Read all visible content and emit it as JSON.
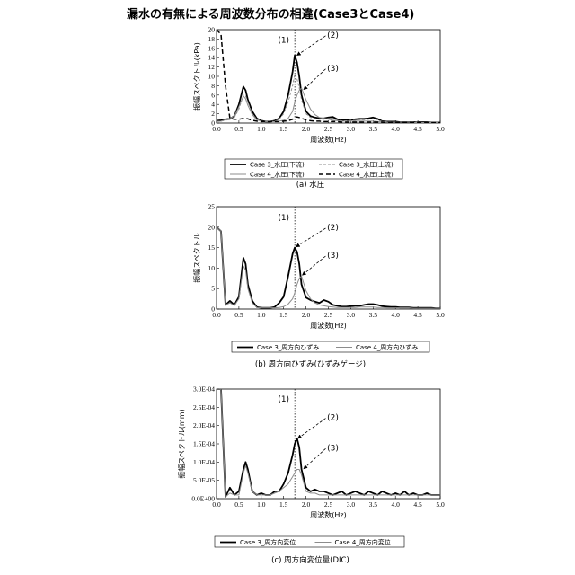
{
  "title": "漏水の有無による周波数分布の相違(Case3とCase4)",
  "colors": {
    "black": "#000000",
    "gray": "#8c8c8c",
    "frame": "#000000"
  },
  "chart_data": [
    {
      "type": "line",
      "ylabel": "振幅スペクトル(kPa)",
      "xlabel": "周波数(Hz)",
      "caption": "(a) 水圧",
      "xlim": [
        0,
        5
      ],
      "ylim": [
        0,
        20
      ],
      "xticks": [
        "0.0",
        "0.5",
        "1.0",
        "1.5",
        "2.0",
        "2.5",
        "3.0",
        "3.5",
        "4.0",
        "4.5",
        "5.0"
      ],
      "yticks": [
        "0",
        "2",
        "4",
        "6",
        "8",
        "10",
        "12",
        "14",
        "16",
        "18",
        "20"
      ],
      "vline": 1.75,
      "annotations": [
        {
          "label": "(1)",
          "x": 1.5,
          "y": 17.2
        },
        {
          "label": "(2)",
          "x": 2.6,
          "y": 18.3,
          "tx": 1.8,
          "ty": 14.5
        },
        {
          "label": "(3)",
          "x": 2.6,
          "y": 11.2,
          "tx": 1.95,
          "ty": 7.2
        }
      ],
      "x": [
        0.0,
        0.1,
        0.2,
        0.3,
        0.4,
        0.5,
        0.6,
        0.65,
        0.7,
        0.8,
        0.9,
        1.0,
        1.1,
        1.2,
        1.3,
        1.4,
        1.5,
        1.6,
        1.7,
        1.75,
        1.8,
        1.85,
        1.9,
        2.0,
        2.1,
        2.2,
        2.3,
        2.4,
        2.5,
        2.6,
        2.7,
        2.8,
        2.9,
        3.0,
        3.1,
        3.2,
        3.3,
        3.4,
        3.5,
        3.6,
        3.7,
        3.8,
        3.9,
        4.0,
        4.1,
        4.2,
        4.3,
        4.4,
        4.5,
        4.6,
        4.7,
        4.8,
        4.9,
        5.0
      ],
      "legend": [
        "Case 3_水圧(下流)",
        "Case 3_水圧(上流)",
        "Case 4_水圧(下流)",
        "Case 4_水圧(上流)"
      ],
      "series": [
        {
          "name": "Case 3_水圧(下流)",
          "color": "#000000",
          "width": 1.8,
          "dash": "",
          "values": [
            0.5,
            0.6,
            0.8,
            0.9,
            1.5,
            4.0,
            7.8,
            7.0,
            5.0,
            2.5,
            1.0,
            0.5,
            0.3,
            0.3,
            0.5,
            1.0,
            2.5,
            6.0,
            11.0,
            14.5,
            13.0,
            10.0,
            6.0,
            2.5,
            1.5,
            1.2,
            1.0,
            1.0,
            1.2,
            1.3,
            0.8,
            0.6,
            0.6,
            0.7,
            0.8,
            0.9,
            0.9,
            1.0,
            1.2,
            0.9,
            0.4,
            0.3,
            0.3,
            0.3,
            0.2,
            0.2,
            0.2,
            0.2,
            0.2,
            0.2,
            0.2,
            0.1,
            0.1,
            0.1
          ]
        },
        {
          "name": "Case 3_水圧(上流)",
          "color": "#8c8c8c",
          "width": 0.9,
          "dash": "3,2",
          "values": [
            0.4,
            0.4,
            0.6,
            0.8,
            1.2,
            3.0,
            6.0,
            5.8,
            4.5,
            2.0,
            0.8,
            0.4,
            0.3,
            0.3,
            0.4,
            0.8,
            2.0,
            4.5,
            8.0,
            10.5,
            9.5,
            7.5,
            5.0,
            2.0,
            1.2,
            0.9,
            0.8,
            0.8,
            1.0,
            1.0,
            0.6,
            0.5,
            0.5,
            0.6,
            0.6,
            0.7,
            0.7,
            0.8,
            0.9,
            0.7,
            0.3,
            0.3,
            0.2,
            0.2,
            0.2,
            0.2,
            0.2,
            0.2,
            0.2,
            0.1,
            0.1,
            0.1,
            0.1,
            0.1
          ]
        },
        {
          "name": "Case 4_水圧(下流)",
          "color": "#8c8c8c",
          "width": 1.0,
          "dash": "",
          "values": [
            0.3,
            0.4,
            0.7,
            1.0,
            1.5,
            3.5,
            5.8,
            5.2,
            3.8,
            1.8,
            0.7,
            0.4,
            0.3,
            0.3,
            0.3,
            0.4,
            0.6,
            1.0,
            2.5,
            4.5,
            6.0,
            7.0,
            7.5,
            5.0,
            3.0,
            1.8,
            1.2,
            1.0,
            0.8,
            0.6,
            0.5,
            0.4,
            0.4,
            0.4,
            0.4,
            0.4,
            0.4,
            0.4,
            0.4,
            0.3,
            0.3,
            0.2,
            0.2,
            0.2,
            0.2,
            0.2,
            0.2,
            0.1,
            0.1,
            0.1,
            0.1,
            0.1,
            0.1,
            0.1
          ]
        },
        {
          "name": "Case 4_水圧(上流)",
          "color": "#000000",
          "width": 1.5,
          "dash": "5,3",
          "values": [
            20.0,
            19.0,
            8.0,
            1.0,
            0.8,
            0.8,
            1.0,
            1.0,
            0.9,
            0.6,
            0.4,
            0.3,
            0.3,
            0.3,
            0.3,
            0.3,
            0.4,
            0.5,
            0.8,
            1.2,
            1.3,
            1.2,
            1.0,
            0.7,
            0.5,
            0.4,
            0.4,
            0.3,
            0.3,
            0.3,
            0.3,
            0.2,
            0.2,
            0.2,
            0.2,
            0.2,
            0.2,
            0.2,
            0.2,
            0.2,
            0.2,
            0.1,
            0.1,
            0.1,
            0.1,
            0.1,
            0.1,
            0.1,
            0.1,
            0.1,
            0.1,
            0.1,
            0.1,
            0.1
          ]
        }
      ]
    },
    {
      "type": "line",
      "ylabel": "振幅スペクトル",
      "xlabel": "周波数(Hz)",
      "caption": "(b) 周方向ひずみ(ひずみゲージ)",
      "xlim": [
        0,
        5
      ],
      "ylim": [
        0,
        25
      ],
      "xticks": [
        "0.0",
        "0.5",
        "1.0",
        "1.5",
        "2.0",
        "2.5",
        "3.0",
        "3.5",
        "4.0",
        "4.5",
        "5.0"
      ],
      "yticks": [
        "0",
        "5",
        "10",
        "15",
        "20",
        "25"
      ],
      "vline": 1.75,
      "annotations": [
        {
          "label": "(1)",
          "x": 1.5,
          "y": 21.7
        },
        {
          "label": "(2)",
          "x": 2.6,
          "y": 19.3,
          "tx": 1.78,
          "ty": 15.2
        },
        {
          "label": "(3)",
          "x": 2.6,
          "y": 12.5,
          "tx": 1.92,
          "ty": 8.3
        }
      ],
      "x": [
        0.0,
        0.1,
        0.2,
        0.3,
        0.4,
        0.5,
        0.6,
        0.65,
        0.7,
        0.8,
        0.9,
        1.0,
        1.1,
        1.2,
        1.3,
        1.4,
        1.5,
        1.6,
        1.7,
        1.75,
        1.8,
        1.85,
        1.9,
        2.0,
        2.1,
        2.2,
        2.3,
        2.4,
        2.5,
        2.6,
        2.7,
        2.8,
        2.9,
        3.0,
        3.1,
        3.2,
        3.3,
        3.4,
        3.5,
        3.6,
        3.7,
        3.8,
        3.9,
        4.0,
        4.1,
        4.2,
        4.3,
        4.4,
        4.5,
        4.6,
        4.7,
        4.8,
        4.9,
        5.0
      ],
      "legend": [
        "Case 3_周方向ひずみ",
        "Case 4_周方向ひずみ"
      ],
      "series": [
        {
          "name": "Case 3_周方向ひずみ",
          "color": "#000000",
          "width": 1.8,
          "dash": "",
          "values": [
            20.0,
            19.0,
            1.0,
            2.0,
            1.0,
            3.0,
            12.5,
            11.0,
            6.0,
            2.0,
            0.5,
            0.3,
            0.3,
            0.3,
            0.5,
            1.5,
            3.0,
            8.0,
            13.5,
            15.0,
            14.0,
            11.0,
            6.0,
            2.8,
            2.2,
            1.8,
            1.5,
            2.2,
            1.8,
            1.0,
            0.8,
            0.6,
            0.6,
            0.7,
            0.8,
            0.8,
            1.0,
            1.2,
            1.2,
            1.0,
            0.7,
            0.6,
            0.5,
            0.5,
            0.4,
            0.4,
            0.4,
            0.3,
            0.3,
            0.3,
            0.3,
            0.3,
            0.2,
            0.2
          ]
        },
        {
          "name": "Case 4_周方向ひずみ",
          "color": "#8c8c8c",
          "width": 1.0,
          "dash": "",
          "values": [
            20.0,
            19.0,
            1.0,
            1.5,
            0.9,
            2.5,
            10.5,
            9.5,
            5.0,
            1.5,
            0.4,
            0.3,
            0.3,
            0.3,
            0.3,
            0.4,
            0.6,
            1.2,
            2.5,
            4.0,
            6.0,
            7.5,
            8.0,
            4.5,
            2.5,
            1.5,
            1.0,
            0.8,
            0.6,
            0.5,
            0.4,
            0.4,
            0.4,
            0.4,
            0.4,
            0.5,
            0.5,
            0.5,
            0.5,
            0.4,
            0.4,
            0.3,
            0.3,
            0.3,
            0.3,
            0.3,
            0.3,
            0.2,
            0.2,
            0.2,
            0.2,
            0.2,
            0.2,
            0.2
          ]
        }
      ]
    },
    {
      "type": "line",
      "ylabel": "振幅スペクトル(mm)",
      "xlabel": "周波数(Hz)",
      "caption": "(c) 周方向変位量(DIC)",
      "xlim": [
        0,
        5
      ],
      "ylim": [
        0,
        0.0003
      ],
      "xticks": [
        "0.0",
        "0.5",
        "1.0",
        "1.5",
        "2.0",
        "2.5",
        "3.0",
        "3.5",
        "4.0",
        "4.5",
        "5.0"
      ],
      "yticks": [
        "0.0E+00",
        "5.0E-05",
        "1.0E-04",
        "1.5E-04",
        "2.0E-04",
        "2.5E-04",
        "3.0E-04"
      ],
      "vline": 1.75,
      "annotations": [
        {
          "label": "(1)",
          "x": 1.5,
          "y": 0.000265
        },
        {
          "label": "(2)",
          "x": 2.6,
          "y": 0.000215,
          "tx": 1.82,
          "ty": 0.000165
        },
        {
          "label": "(3)",
          "x": 2.6,
          "y": 0.000132,
          "tx": 1.95,
          "ty": 8.2e-05
        }
      ],
      "x": [
        0.0,
        0.1,
        0.2,
        0.3,
        0.4,
        0.5,
        0.6,
        0.65,
        0.7,
        0.8,
        0.9,
        1.0,
        1.1,
        1.2,
        1.3,
        1.4,
        1.5,
        1.6,
        1.7,
        1.75,
        1.8,
        1.85,
        1.9,
        2.0,
        2.1,
        2.2,
        2.3,
        2.4,
        2.5,
        2.6,
        2.7,
        2.8,
        2.9,
        3.0,
        3.1,
        3.2,
        3.3,
        3.4,
        3.5,
        3.6,
        3.7,
        3.8,
        3.9,
        4.0,
        4.1,
        4.2,
        4.3,
        4.4,
        4.5,
        4.6,
        4.7,
        4.8,
        4.9,
        5.0
      ],
      "legend": [
        "Case 3_周方向変位",
        "Case 4_周方向変位"
      ],
      "series": [
        {
          "name": "Case 3_周方向変位",
          "color": "#000000",
          "width": 1.8,
          "dash": "",
          "values": [
            0.0003,
            0.0003,
            5e-06,
            3e-05,
            1e-05,
            2e-05,
            8e-05,
            0.0001,
            8e-05,
            2e-05,
            1e-05,
            1.5e-05,
            1e-05,
            1e-05,
            2e-05,
            2e-05,
            4e-05,
            7e-05,
            0.00012,
            0.00015,
            0.000165,
            0.00014,
            8e-05,
            3e-05,
            2e-05,
            2.5e-05,
            2e-05,
            2e-05,
            1.5e-05,
            1e-05,
            1.5e-05,
            2e-05,
            1e-05,
            1.5e-05,
            2e-05,
            1.5e-05,
            1e-05,
            2e-05,
            1.5e-05,
            1e-05,
            2e-05,
            1.5e-05,
            1e-05,
            1.5e-05,
            1e-05,
            2e-05,
            1e-05,
            1.5e-05,
            1e-05,
            1e-05,
            1.5e-05,
            1e-05,
            1e-05,
            1e-05
          ]
        },
        {
          "name": "Case 4_周方向変位",
          "color": "#8c8c8c",
          "width": 1.0,
          "dash": "",
          "values": [
            0.0003,
            0.0003,
            5e-06,
            1.5e-05,
            1e-05,
            1e-05,
            7e-05,
            9e-05,
            7e-05,
            2e-05,
            1e-05,
            1e-05,
            1e-05,
            1e-05,
            1.5e-05,
            2e-05,
            3e-05,
            4e-05,
            6e-05,
            7e-05,
            8e-05,
            8e-05,
            6.5e-05,
            2e-05,
            1.5e-05,
            1.5e-05,
            1e-05,
            1e-05,
            1e-05,
            1e-05,
            1e-05,
            1e-05,
            1e-05,
            1e-05,
            1e-05,
            1e-05,
            1e-05,
            1e-05,
            1e-05,
            1e-05,
            1e-05,
            1e-05,
            1e-05,
            1e-05,
            1e-05,
            1e-05,
            1e-05,
            1e-05,
            1e-05,
            1e-05,
            1e-05,
            1e-05,
            1e-05,
            1e-05
          ]
        }
      ]
    }
  ]
}
